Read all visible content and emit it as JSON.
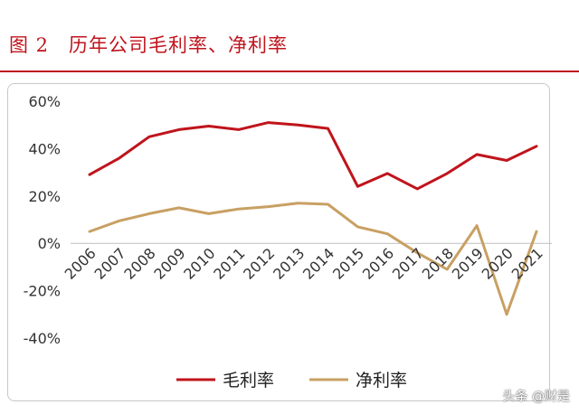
{
  "figure_title": "图 2　历年公司毛利率、净利率",
  "watermark": "头条 @财是",
  "colors": {
    "accent": "#c0141c",
    "gross_margin": "#c0141c",
    "net_margin": "#c8a063"
  },
  "chart_data": {
    "type": "line",
    "title": "",
    "xlabel": "",
    "ylabel": "",
    "x": [
      "2006",
      "2007",
      "2008",
      "2009",
      "2010",
      "2011",
      "2012",
      "2013",
      "2014",
      "2015",
      "2016",
      "2017",
      "2018",
      "2019",
      "2020",
      "2021"
    ],
    "series": [
      {
        "name": "毛利率",
        "values": [
          29,
          36,
          45,
          48,
          49.5,
          48,
          51,
          50,
          48.5,
          24,
          29.5,
          23,
          29.5,
          37.5,
          35,
          41
        ]
      },
      {
        "name": "净利率",
        "values": [
          5,
          9.5,
          12.5,
          15,
          12.5,
          14.5,
          15.5,
          17,
          16.5,
          7,
          4,
          -4,
          -11,
          7.5,
          -30,
          5
        ]
      }
    ],
    "ylim": [
      -40,
      60
    ],
    "yticks": [
      "60%",
      "40%",
      "20%",
      "0%",
      "-20%",
      "-40%"
    ],
    "grid": false,
    "legend_position": "bottom-center"
  }
}
